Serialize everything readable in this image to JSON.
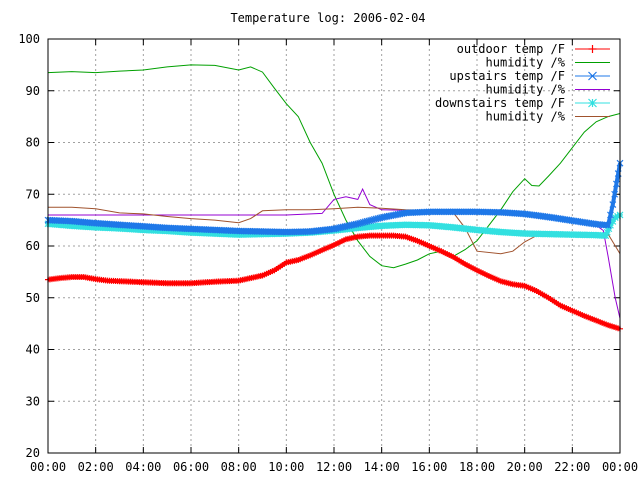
{
  "chart_data": {
    "type": "line",
    "title": "Temperature log: 2006-02-04",
    "xlabel": "",
    "ylabel": "",
    "xlim": [
      0,
      24
    ],
    "ylim": [
      20,
      100
    ],
    "grid": true,
    "legend_position": "top-right",
    "x_tick_labels": [
      "00:00",
      "02:00",
      "04:00",
      "06:00",
      "08:00",
      "10:00",
      "12:00",
      "14:00",
      "16:00",
      "18:00",
      "20:00",
      "22:00",
      "00:00"
    ],
    "y_tick_labels": [
      "20",
      "30",
      "40",
      "50",
      "60",
      "70",
      "80",
      "90",
      "100"
    ],
    "series": [
      {
        "name": "outdoor temp /F",
        "color": "#ff0000",
        "marker": "plus",
        "points": [
          [
            0,
            53.5
          ],
          [
            0.5,
            53.8
          ],
          [
            1,
            54
          ],
          [
            1.5,
            54
          ],
          [
            2,
            53.6
          ],
          [
            2.5,
            53.3
          ],
          [
            3,
            53.2
          ],
          [
            4,
            53
          ],
          [
            5,
            52.8
          ],
          [
            6,
            52.8
          ],
          [
            7,
            53.1
          ],
          [
            8,
            53.3
          ],
          [
            9,
            54.3
          ],
          [
            9.5,
            55.3
          ],
          [
            10,
            56.8
          ],
          [
            10.5,
            57.3
          ],
          [
            11,
            58.2
          ],
          [
            11.5,
            59.2
          ],
          [
            12,
            60.2
          ],
          [
            12.5,
            61.3
          ],
          [
            13,
            61.8
          ],
          [
            13.5,
            62
          ],
          [
            14,
            62
          ],
          [
            14.5,
            62
          ],
          [
            15,
            61.8
          ],
          [
            15.5,
            61
          ],
          [
            16,
            60
          ],
          [
            16.5,
            59
          ],
          [
            17,
            57.9
          ],
          [
            17.5,
            56.5
          ],
          [
            18,
            55.3
          ],
          [
            18.5,
            54.2
          ],
          [
            19,
            53.2
          ],
          [
            19.5,
            52.6
          ],
          [
            20,
            52.3
          ],
          [
            20.5,
            51.3
          ],
          [
            21,
            50
          ],
          [
            21.5,
            48.5
          ],
          [
            22,
            47.5
          ],
          [
            22.5,
            46.5
          ],
          [
            23,
            45.6
          ],
          [
            23.5,
            44.7
          ],
          [
            24,
            44
          ]
        ]
      },
      {
        "name": "humidity /%",
        "color": "#00a000",
        "marker": "none",
        "points": [
          [
            0,
            93.5
          ],
          [
            1,
            93.7
          ],
          [
            2,
            93.5
          ],
          [
            3,
            93.8
          ],
          [
            4,
            94
          ],
          [
            5,
            94.6
          ],
          [
            6,
            95
          ],
          [
            7,
            94.9
          ],
          [
            8,
            94
          ],
          [
            8.5,
            94.6
          ],
          [
            9,
            93.6
          ],
          [
            9.5,
            90.5
          ],
          [
            10,
            87.5
          ],
          [
            10.5,
            85
          ],
          [
            11,
            80
          ],
          [
            11.5,
            76
          ],
          [
            12,
            70
          ],
          [
            12.5,
            65
          ],
          [
            13,
            61
          ],
          [
            13.5,
            58
          ],
          [
            14,
            56.2
          ],
          [
            14.5,
            55.8
          ],
          [
            15,
            56.5
          ],
          [
            15.5,
            57.3
          ],
          [
            16,
            58.5
          ],
          [
            16.5,
            59
          ],
          [
            17,
            58
          ],
          [
            17.5,
            59.3
          ],
          [
            18,
            61
          ],
          [
            18.5,
            64
          ],
          [
            19,
            67
          ],
          [
            19.5,
            70.5
          ],
          [
            20,
            73
          ],
          [
            20.3,
            71.7
          ],
          [
            20.6,
            71.6
          ],
          [
            21,
            73.5
          ],
          [
            21.5,
            76
          ],
          [
            22,
            79
          ],
          [
            22.5,
            82
          ],
          [
            23,
            84
          ],
          [
            23.5,
            85
          ],
          [
            24,
            85.6
          ]
        ]
      },
      {
        "name": "upstairs temp /F",
        "color": "#1f78e8",
        "marker": "cross",
        "points": [
          [
            0,
            65
          ],
          [
            1,
            64.8
          ],
          [
            2,
            64.4
          ],
          [
            3,
            64.1
          ],
          [
            4,
            63.8
          ],
          [
            5,
            63.5
          ],
          [
            6,
            63.3
          ],
          [
            7,
            63.1
          ],
          [
            8,
            62.9
          ],
          [
            9,
            62.8
          ],
          [
            10,
            62.7
          ],
          [
            11,
            62.8
          ],
          [
            12,
            63.3
          ],
          [
            13,
            64.3
          ],
          [
            14,
            65.5
          ],
          [
            15,
            66.4
          ],
          [
            16,
            66.6
          ],
          [
            17,
            66.6
          ],
          [
            18,
            66.6
          ],
          [
            19,
            66.5
          ],
          [
            20,
            66.2
          ],
          [
            21,
            65.6
          ],
          [
            22,
            64.9
          ],
          [
            23,
            64.2
          ],
          [
            23.5,
            64
          ],
          [
            23.7,
            68
          ],
          [
            23.85,
            72
          ],
          [
            24,
            76
          ]
        ]
      },
      {
        "name": "humidity /%",
        "color": "#9400d3",
        "marker": "none",
        "points": [
          [
            0,
            66
          ],
          [
            1,
            66
          ],
          [
            2,
            66
          ],
          [
            3,
            66
          ],
          [
            4,
            66
          ],
          [
            5,
            66
          ],
          [
            6,
            66
          ],
          [
            7,
            66
          ],
          [
            8,
            66
          ],
          [
            9,
            66
          ],
          [
            10,
            66
          ],
          [
            11.5,
            66.3
          ],
          [
            12,
            69
          ],
          [
            12.5,
            69.5
          ],
          [
            13,
            69
          ],
          [
            13.2,
            71
          ],
          [
            13.5,
            68
          ],
          [
            14,
            67
          ],
          [
            16,
            66.8
          ],
          [
            18,
            66.5
          ],
          [
            20,
            65.8
          ],
          [
            22,
            64.6
          ],
          [
            23,
            64
          ],
          [
            23.3,
            63
          ],
          [
            23.5,
            58
          ],
          [
            23.8,
            50
          ],
          [
            24,
            46
          ]
        ]
      },
      {
        "name": "downstairs temp /F",
        "color": "#33e0e0",
        "marker": "star",
        "points": [
          [
            0,
            64.3
          ],
          [
            1,
            63.9
          ],
          [
            2,
            63.6
          ],
          [
            3,
            63.4
          ],
          [
            4,
            63.1
          ],
          [
            5,
            62.9
          ],
          [
            6,
            62.6
          ],
          [
            7,
            62.4
          ],
          [
            8,
            62.2
          ],
          [
            9,
            62.3
          ],
          [
            10,
            62.4
          ],
          [
            11,
            62.6
          ],
          [
            12,
            63
          ],
          [
            13,
            63.5
          ],
          [
            14,
            63.9
          ],
          [
            15,
            64.1
          ],
          [
            16,
            64
          ],
          [
            17,
            63.6
          ],
          [
            18,
            63.1
          ],
          [
            19,
            62.7
          ],
          [
            20,
            62.4
          ],
          [
            21,
            62.3
          ],
          [
            22,
            62.2
          ],
          [
            23,
            62.1
          ],
          [
            23.4,
            62
          ],
          [
            23.6,
            64
          ],
          [
            23.8,
            65.5
          ],
          [
            24,
            66
          ]
        ]
      },
      {
        "name": "humidity /%",
        "color": "#a0522d",
        "marker": "none",
        "points": [
          [
            0,
            67.5
          ],
          [
            1,
            67.5
          ],
          [
            2,
            67.2
          ],
          [
            3,
            66.4
          ],
          [
            4,
            66.2
          ],
          [
            5,
            65.7
          ],
          [
            6,
            65.3
          ],
          [
            7,
            65
          ],
          [
            8,
            64.5
          ],
          [
            8.5,
            65.3
          ],
          [
            9,
            66.8
          ],
          [
            10,
            67
          ],
          [
            11,
            67
          ],
          [
            12,
            67.2
          ],
          [
            13,
            67.5
          ],
          [
            14,
            67.3
          ],
          [
            15,
            67
          ],
          [
            16,
            66.8
          ],
          [
            17,
            66.5
          ],
          [
            17.5,
            63.5
          ],
          [
            18,
            59
          ],
          [
            19,
            58.5
          ],
          [
            19.5,
            59
          ],
          [
            20,
            60.8
          ],
          [
            20.5,
            62
          ],
          [
            21,
            62.3
          ],
          [
            22,
            62.3
          ],
          [
            23,
            62.3
          ],
          [
            23.5,
            62.3
          ],
          [
            24,
            58.5
          ]
        ]
      }
    ]
  }
}
